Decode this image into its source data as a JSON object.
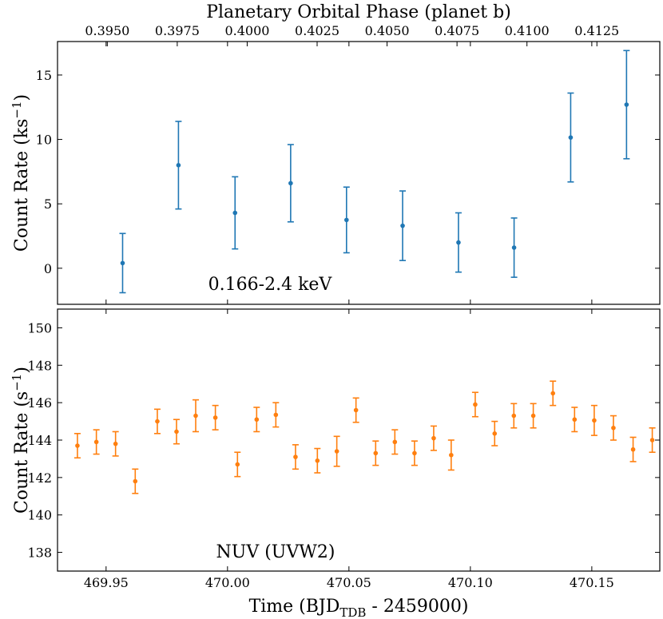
{
  "chart_data": {
    "type": "scatter",
    "title": "Planetary Orbital Phase (planet b)",
    "top_axis": {
      "label": "Planetary Orbital Phase (planet b)",
      "ticks": [
        "0.3950",
        "0.3975",
        "0.4000",
        "0.4025",
        "0.4050",
        "0.4075",
        "0.4100",
        "0.4125"
      ],
      "tick_times": [
        469.9505,
        469.9793,
        470.0081,
        470.0369,
        470.0657,
        470.0945,
        470.1233,
        470.1521
      ]
    },
    "xlabel": "Time (BJD",
    "xlabel_sub": "TDB",
    "xlabel_suffix": " - 2459000)",
    "xlim": [
      469.93,
      470.178
    ],
    "x_ticks": [
      "469.95",
      "470.00",
      "470.05",
      "470.10",
      "470.15"
    ],
    "x_tick_values": [
      469.95,
      470.0,
      470.05,
      470.1,
      470.15
    ],
    "panels": [
      {
        "name": "xray",
        "label": "0.166-2.4 keV",
        "ylabel": "Count Rate (ks",
        "ylabel_sup": "−1",
        "ylabel_suffix": ")",
        "color": "#1f77b4",
        "ylim": [
          -2.8,
          17.6
        ],
        "y_ticks": [
          "0",
          "5",
          "10",
          "15"
        ],
        "y_tick_values": [
          0,
          5,
          10,
          15
        ],
        "series": [
          {
            "x": 469.9568,
            "y": 0.4,
            "err": 2.3
          },
          {
            "x": 469.9798,
            "y": 8.0,
            "err": 3.4
          },
          {
            "x": 470.0031,
            "y": 4.3,
            "err": 2.8
          },
          {
            "x": 470.026,
            "y": 6.6,
            "err": 3.0
          },
          {
            "x": 470.049,
            "y": 3.75,
            "err": 2.55
          },
          {
            "x": 470.0721,
            "y": 3.3,
            "err": 2.7
          },
          {
            "x": 470.0951,
            "y": 2.0,
            "err": 2.3
          },
          {
            "x": 470.118,
            "y": 1.6,
            "err": 2.3
          },
          {
            "x": 470.1413,
            "y": 10.15,
            "err": 3.45
          },
          {
            "x": 470.1643,
            "y": 12.7,
            "err": 4.2
          }
        ]
      },
      {
        "name": "nuv",
        "label": "NUV (UVW2)",
        "ylabel": "Count Rate (s",
        "ylabel_sup": "−1",
        "ylabel_suffix": ")",
        "color": "#ff7f0e",
        "ylim": [
          137.0,
          151.0
        ],
        "y_ticks": [
          "138",
          "140",
          "142",
          "144",
          "146",
          "148",
          "150"
        ],
        "y_tick_values": [
          138,
          140,
          142,
          144,
          146,
          148,
          150
        ],
        "series": [
          {
            "x": 469.9382,
            "y": 143.7,
            "err": 0.65
          },
          {
            "x": 469.946,
            "y": 143.9,
            "err": 0.65
          },
          {
            "x": 469.9539,
            "y": 143.8,
            "err": 0.65
          },
          {
            "x": 469.962,
            "y": 141.8,
            "err": 0.65
          },
          {
            "x": 469.9711,
            "y": 145.0,
            "err": 0.65
          },
          {
            "x": 469.979,
            "y": 144.45,
            "err": 0.65
          },
          {
            "x": 469.9869,
            "y": 145.3,
            "err": 0.85
          },
          {
            "x": 469.995,
            "y": 145.2,
            "err": 0.65
          },
          {
            "x": 470.0041,
            "y": 142.7,
            "err": 0.65
          },
          {
            "x": 470.012,
            "y": 145.1,
            "err": 0.65
          },
          {
            "x": 470.0199,
            "y": 145.35,
            "err": 0.65
          },
          {
            "x": 470.028,
            "y": 143.1,
            "err": 0.65
          },
          {
            "x": 470.037,
            "y": 142.9,
            "err": 0.65
          },
          {
            "x": 470.045,
            "y": 143.4,
            "err": 0.8
          },
          {
            "x": 470.0529,
            "y": 145.6,
            "err": 0.65
          },
          {
            "x": 470.061,
            "y": 143.3,
            "err": 0.65
          },
          {
            "x": 470.0689,
            "y": 143.9,
            "err": 0.65
          },
          {
            "x": 470.077,
            "y": 143.3,
            "err": 0.65
          },
          {
            "x": 470.0849,
            "y": 144.1,
            "err": 0.65
          },
          {
            "x": 470.0921,
            "y": 143.2,
            "err": 0.8
          },
          {
            "x": 470.102,
            "y": 145.9,
            "err": 0.65
          },
          {
            "x": 470.11,
            "y": 144.35,
            "err": 0.65
          },
          {
            "x": 470.1179,
            "y": 145.3,
            "err": 0.65
          },
          {
            "x": 470.1259,
            "y": 145.3,
            "err": 0.65
          },
          {
            "x": 470.134,
            "y": 146.5,
            "err": 0.65
          },
          {
            "x": 470.1429,
            "y": 145.1,
            "err": 0.65
          },
          {
            "x": 470.151,
            "y": 145.05,
            "err": 0.8
          },
          {
            "x": 470.1589,
            "y": 144.65,
            "err": 0.65
          },
          {
            "x": 470.167,
            "y": 143.5,
            "err": 0.65
          },
          {
            "x": 470.1749,
            "y": 144.0,
            "err": 0.65
          }
        ]
      }
    ]
  }
}
